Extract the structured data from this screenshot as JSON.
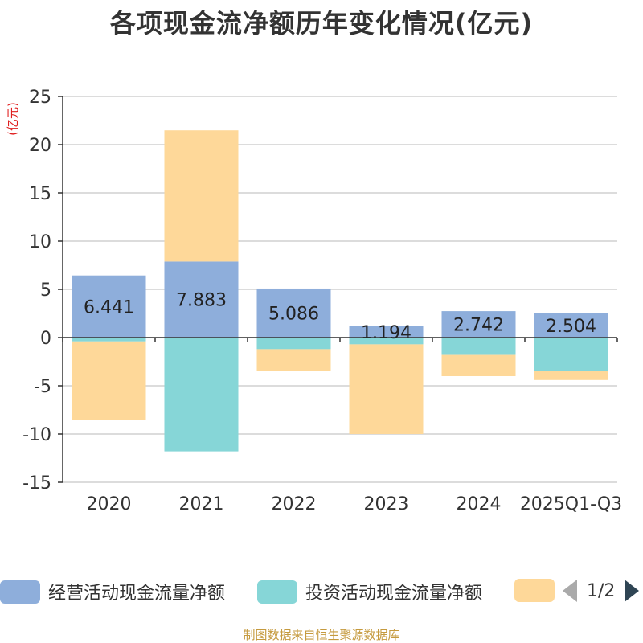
{
  "chart_data": {
    "type": "bar",
    "stacked": true,
    "title": "各项现金流净额历年变化情况(亿元)",
    "ylabel": "(亿元)",
    "xlabel": "",
    "ylim": [
      -15,
      25
    ],
    "yticks": [
      25,
      20,
      15,
      10,
      5,
      0,
      -5,
      -10,
      -15
    ],
    "ytick_labels": [
      "25",
      "20",
      "15",
      "10",
      "5",
      "0",
      "-5",
      "-10",
      "-15"
    ],
    "grid": true,
    "categories": [
      "2020",
      "2021",
      "2022",
      "2023",
      "2024",
      "2025Q1-Q3"
    ],
    "series": [
      {
        "name": "经营活动现金流量净额",
        "color": "#8eaedb",
        "values": [
          6.441,
          7.883,
          5.086,
          1.194,
          2.742,
          2.504
        ],
        "labels": [
          "6.441",
          "7.883",
          "5.086",
          "1.194",
          "2.742",
          "2.504"
        ]
      },
      {
        "name": "投资活动现金流量净额",
        "color": "#86d6d7",
        "values": [
          -0.4,
          -11.8,
          -1.2,
          -0.7,
          -1.8,
          -3.5
        ]
      },
      {
        "name": "",
        "color": "#fed899",
        "values": [
          -8.1,
          13.6,
          -2.3,
          -9.3,
          -2.2,
          -0.9
        ]
      }
    ]
  },
  "legend": {
    "items": [
      {
        "label": "经营活动现金流量净额",
        "color": "#8eaedb"
      },
      {
        "label": "投资活动现金流量净额",
        "color": "#86d6d7"
      },
      {
        "label": "",
        "color": "#fed899"
      }
    ],
    "page_text": "1/2"
  },
  "source": "制图数据来自恒生聚源数据库"
}
